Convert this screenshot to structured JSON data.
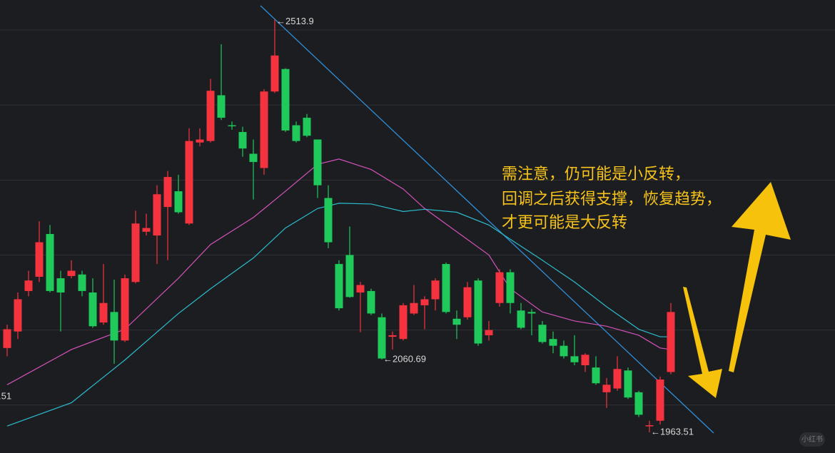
{
  "chart_data": {
    "type": "candlestick",
    "ylim": [
      1936,
      2540
    ],
    "yticks": [
      2000,
      2100,
      2200,
      2300,
      2400,
      2500
    ],
    "grid": true,
    "up_color": "#f5333f",
    "down_color": "#1fc95a",
    "candles": [
      {
        "open": 2076,
        "high": 2107,
        "low": 2065,
        "close": 2101
      },
      {
        "open": 2098,
        "high": 2150,
        "low": 2088,
        "close": 2141
      },
      {
        "open": 2152,
        "high": 2179,
        "low": 2145,
        "close": 2166
      },
      {
        "open": 2171,
        "high": 2245,
        "low": 2164,
        "close": 2217
      },
      {
        "open": 2228,
        "high": 2240,
        "low": 2150,
        "close": 2152
      },
      {
        "open": 2169,
        "high": 2179,
        "low": 2098,
        "close": 2150
      },
      {
        "open": 2172,
        "high": 2193,
        "low": 2169,
        "close": 2179
      },
      {
        "open": 2174,
        "high": 2179,
        "low": 2145,
        "close": 2152
      },
      {
        "open": 2150,
        "high": 2169,
        "low": 2103,
        "close": 2105
      },
      {
        "open": 2110,
        "high": 2188,
        "low": 2107,
        "close": 2136
      },
      {
        "open": 2124,
        "high": 2167,
        "low": 2055,
        "close": 2086
      },
      {
        "open": 2086,
        "high": 2174,
        "low": 2084,
        "close": 2169
      },
      {
        "open": 2164,
        "high": 2259,
        "low": 2162,
        "close": 2242
      },
      {
        "open": 2231,
        "high": 2255,
        "low": 2226,
        "close": 2236
      },
      {
        "open": 2226,
        "high": 2293,
        "low": 2188,
        "close": 2281
      },
      {
        "open": 2264,
        "high": 2312,
        "low": 2193,
        "close": 2304
      },
      {
        "open": 2285,
        "high": 2307,
        "low": 2255,
        "close": 2257
      },
      {
        "open": 2242,
        "high": 2369,
        "low": 2240,
        "close": 2352
      },
      {
        "open": 2350,
        "high": 2369,
        "low": 2345,
        "close": 2354
      },
      {
        "open": 2352,
        "high": 2435,
        "low": 2350,
        "close": 2419
      },
      {
        "open": 2413,
        "high": 2481,
        "low": 2380,
        "close": 2383
      },
      {
        "open": 2373,
        "high": 2378,
        "low": 2367,
        "close": 2372
      },
      {
        "open": 2364,
        "high": 2371,
        "low": 2331,
        "close": 2342
      },
      {
        "open": 2335,
        "high": 2354,
        "low": 2274,
        "close": 2324
      },
      {
        "open": 2316,
        "high": 2421,
        "low": 2307,
        "close": 2418
      },
      {
        "open": 2418,
        "high": 2513.9,
        "low": 2416,
        "close": 2466,
        "label": "←2513.9"
      },
      {
        "open": 2448,
        "high": 2449,
        "low": 2364,
        "close": 2366
      },
      {
        "open": 2373,
        "high": 2378,
        "low": 2350,
        "close": 2352
      },
      {
        "open": 2383,
        "high": 2388,
        "low": 2357,
        "close": 2359
      },
      {
        "open": 2354,
        "high": 2354,
        "low": 2276,
        "close": 2293
      },
      {
        "open": 2276,
        "high": 2293,
        "low": 2209,
        "close": 2217
      },
      {
        "open": 2188,
        "high": 2193,
        "low": 2126,
        "close": 2129
      },
      {
        "open": 2200,
        "high": 2238,
        "low": 2143,
        "close": 2144
      },
      {
        "open": 2150,
        "high": 2164,
        "low": 2097,
        "close": 2160
      },
      {
        "open": 2152,
        "high": 2155,
        "low": 2120,
        "close": 2122
      },
      {
        "open": 2117,
        "high": 2122,
        "low": 2060.69,
        "close": 2062,
        "label": "←2060.69"
      },
      {
        "open": 2091,
        "high": 2098,
        "low": 2074,
        "close": 2093
      },
      {
        "open": 2088,
        "high": 2136,
        "low": 2086,
        "close": 2133
      },
      {
        "open": 2122,
        "high": 2160,
        "low": 2120,
        "close": 2136
      },
      {
        "open": 2133,
        "high": 2145,
        "low": 2101,
        "close": 2141
      },
      {
        "open": 2141,
        "high": 2169,
        "low": 2126,
        "close": 2166
      },
      {
        "open": 2188,
        "high": 2190,
        "low": 2122,
        "close": 2124
      },
      {
        "open": 2115,
        "high": 2126,
        "low": 2088,
        "close": 2107
      },
      {
        "open": 2117,
        "high": 2164,
        "low": 2114,
        "close": 2157
      },
      {
        "open": 2166,
        "high": 2169,
        "low": 2079,
        "close": 2082
      },
      {
        "open": 2093,
        "high": 2112,
        "low": 2086,
        "close": 2100
      },
      {
        "open": 2136,
        "high": 2181,
        "low": 2131,
        "close": 2177
      },
      {
        "open": 2177,
        "high": 2181,
        "low": 2122,
        "close": 2136
      },
      {
        "open": 2126,
        "high": 2136,
        "low": 2101,
        "close": 2103
      },
      {
        "open": 2124,
        "high": 2128,
        "low": 2093,
        "close": 2122
      },
      {
        "open": 2107,
        "high": 2112,
        "low": 2082,
        "close": 2084
      },
      {
        "open": 2088,
        "high": 2098,
        "low": 2069,
        "close": 2079
      },
      {
        "open": 2079,
        "high": 2086,
        "low": 2062,
        "close": 2065
      },
      {
        "open": 2065,
        "high": 2093,
        "low": 2053,
        "close": 2057
      },
      {
        "open": 2053,
        "high": 2069,
        "low": 2044,
        "close": 2067
      },
      {
        "open": 2050,
        "high": 2065,
        "low": 2027,
        "close": 2029
      },
      {
        "open": 2017,
        "high": 2036,
        "low": 1996,
        "close": 2027
      },
      {
        "open": 2022,
        "high": 2065,
        "low": 2019,
        "close": 2048
      },
      {
        "open": 2046,
        "high": 2050,
        "low": 2008,
        "close": 2010
      },
      {
        "open": 2017,
        "high": 2019,
        "low": 1984,
        "close": 1987
      },
      {
        "open": 1972,
        "high": 1979,
        "low": 1963.51,
        "close": 1973,
        "label": "←1963.51"
      },
      {
        "open": 1979,
        "high": 2038,
        "low": 1974,
        "close": 2034
      },
      {
        "open": 2044,
        "high": 2136,
        "low": 2041,
        "close": 2124
      }
    ],
    "series": [
      {
        "color": "#d452b8",
        "x": [
          0,
          6,
          11,
          16,
          19,
          23,
          26,
          29,
          31,
          34,
          37,
          39,
          42,
          45,
          47,
          50,
          53,
          56,
          59,
          61,
          62
        ],
        "values": [
          2027,
          2074,
          2101,
          2169,
          2214,
          2250,
          2285,
          2321,
          2328,
          2314,
          2288,
          2262,
          2231,
          2200,
          2155,
          2124,
          2112,
          2105,
          2093,
          2076,
          2074
        ]
      },
      {
        "color": "#2bbccc",
        "x": [
          0,
          6,
          11,
          16,
          19,
          23,
          26,
          29,
          31,
          34,
          37,
          39,
          42,
          45,
          47,
          50,
          53,
          56,
          59,
          61,
          62
        ],
        "values": [
          1972,
          2003,
          2060,
          2122,
          2155,
          2196,
          2236,
          2262,
          2269,
          2268,
          2258,
          2261,
          2257,
          2240,
          2221,
          2193,
          2164,
          2131,
          2101,
          2091,
          2091
        ]
      }
    ],
    "edge_label": ".51",
    "note": [
      "需注意，仍可能是小反转，",
      "回调之后获得支撑，恢复趋势，",
      "才更可能是大反转"
    ],
    "watermark": "小红书"
  }
}
